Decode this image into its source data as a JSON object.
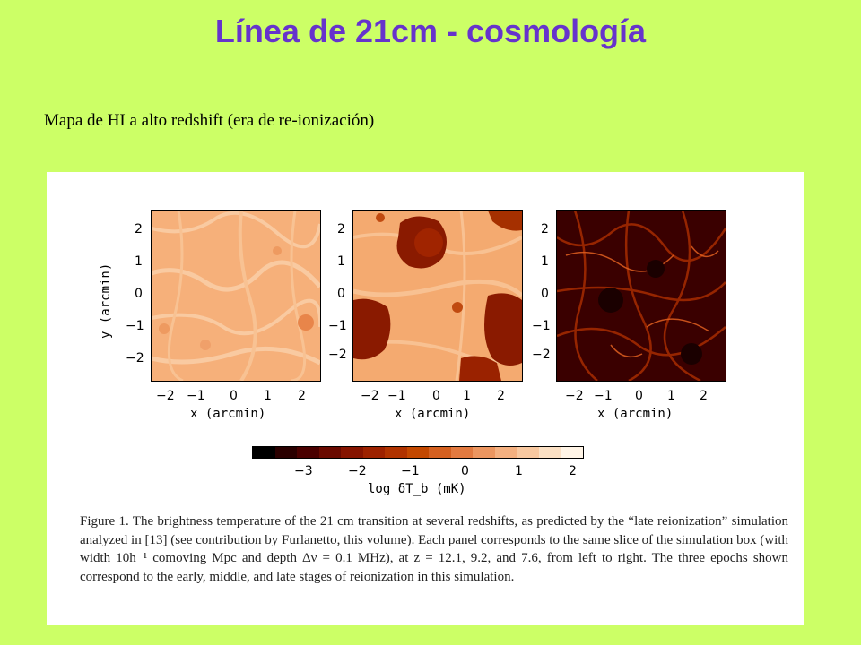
{
  "title": "Línea de 21cm - cosmología",
  "subtitle": "Mapa de HI a alto redshift (era de re-ionización)",
  "figure": {
    "panels": [
      {
        "name": "early"
      },
      {
        "name": "middle"
      },
      {
        "name": "late"
      }
    ],
    "x_ticks": [
      "−2",
      "−1",
      "0",
      "1",
      "2"
    ],
    "y_ticks": [
      "2",
      "1",
      "0",
      "−1",
      "−2"
    ],
    "x_label": "x (arcmin)",
    "y_label": "y (arcmin)",
    "colorbar": {
      "ticks": [
        "−3",
        "−2",
        "−1",
        "0",
        "1",
        "2"
      ],
      "label": "log δT_b (mK)",
      "colors": [
        "#000000",
        "#2a0000",
        "#4a0000",
        "#6a0a00",
        "#861400",
        "#9d2200",
        "#b03300",
        "#c34800",
        "#d46020",
        "#e27a40",
        "#ec9660",
        "#f4b080",
        "#f8c8a0",
        "#fbe0c4",
        "#fff4e6"
      ]
    },
    "caption": "Figure 1.  The brightness temperature of the 21 cm transition at several redshifts, as predicted by the “late reionization” simulation analyzed in [13] (see contribution by Furlanetto, this volume). Each panel corresponds to the same slice of the simulation box (with width 10h⁻¹ comoving Mpc and depth Δν = 0.1 MHz), at z = 12.1, 9.2, and 7.6, from left to right.  The three epochs shown correspond to the early, middle, and late stages of reionization in this simulation."
  }
}
